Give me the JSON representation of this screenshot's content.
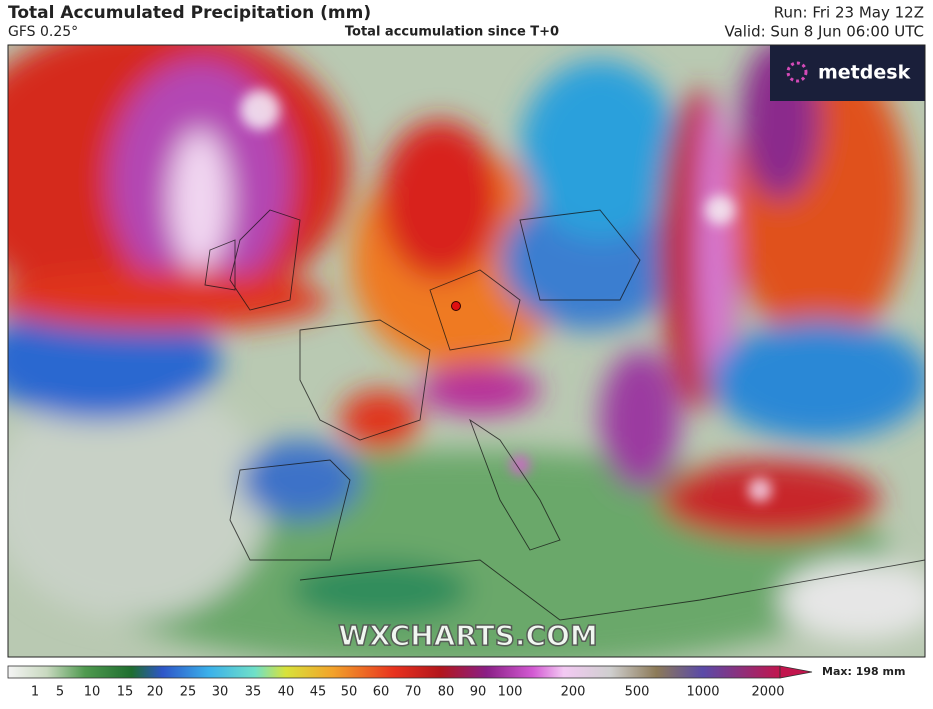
{
  "header": {
    "title": "Total Accumulated Precipitation (mm)",
    "model": "GFS 0.25°",
    "subtitle": "Total accumulation since T+0",
    "run": "Run: Fri 23 May 12Z",
    "valid": "Valid: Sun 8 Jun 06:00 UTC"
  },
  "logo": "metdesk",
  "watermark": "WXCHARTS.COM",
  "legend": {
    "ticks": [
      1,
      5,
      10,
      15,
      20,
      25,
      30,
      35,
      40,
      45,
      50,
      60,
      70,
      80,
      90,
      100,
      200,
      500,
      1000,
      2000
    ],
    "max_label": "Max: 198 mm"
  }
}
